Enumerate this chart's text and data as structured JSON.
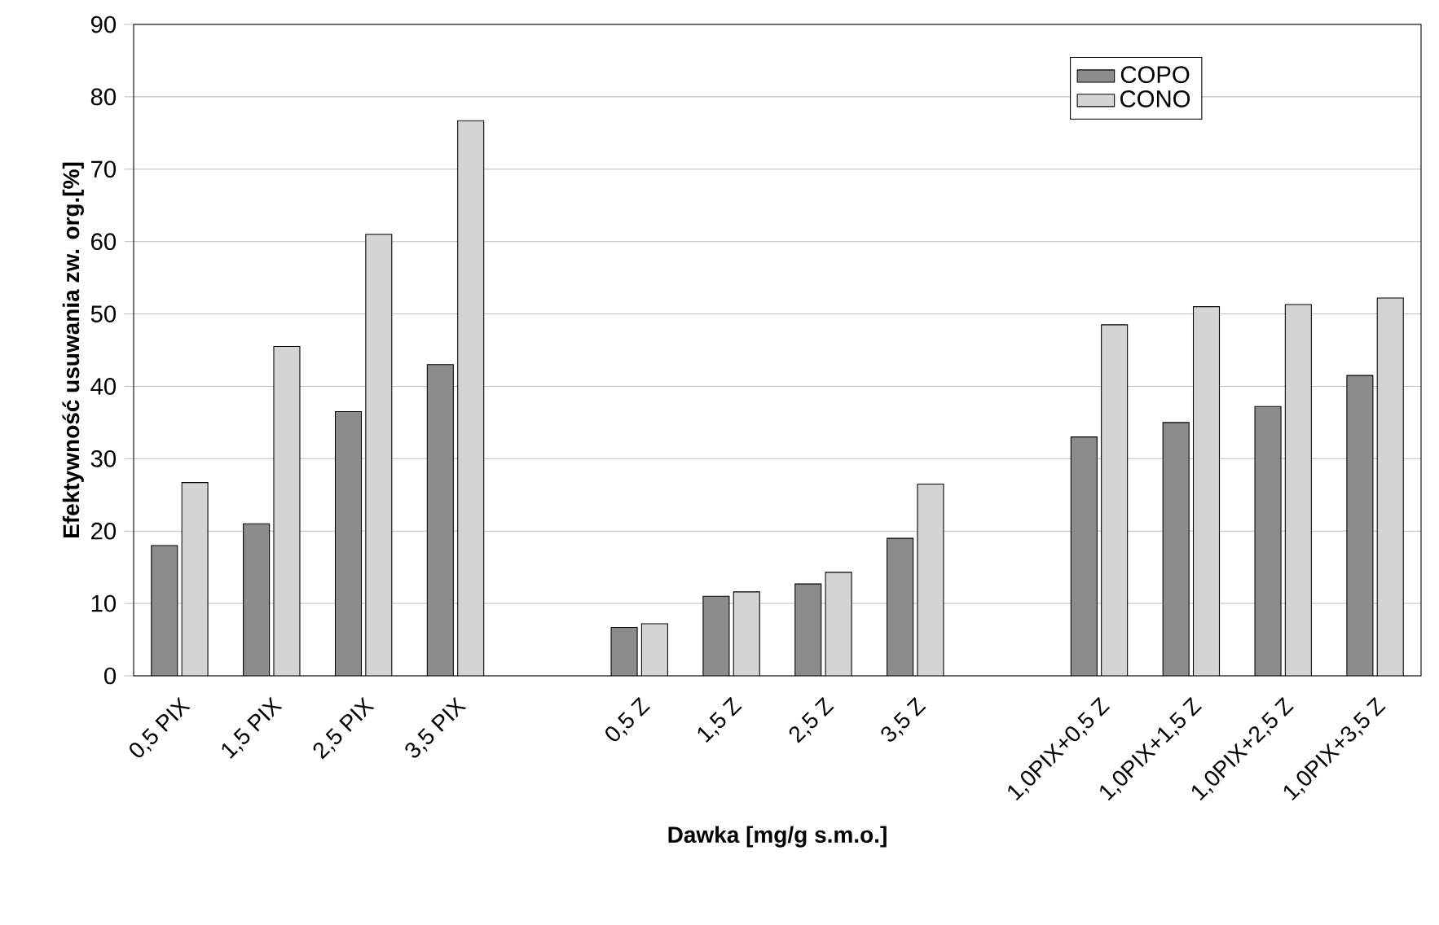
{
  "chart_data": {
    "type": "bar",
    "xlabel": "Dawka [mg/g s.m.o.]",
    "ylabel": "Efektywność usuwania zw. org.[%]",
    "categories": [
      "0,5 PIX",
      "1,5 PIX",
      "2,5 PIX",
      "3,5 PIX",
      null,
      "0,5 Z",
      "1,5 Z",
      "2,5 Z",
      "3,5 Z",
      null,
      "1,0PIX+0,5 Z",
      "1,0PIX+1,5 Z",
      "1,0PIX+2,5 Z",
      "1,0PIX+3,5 Z"
    ],
    "series": [
      {
        "name": "COPO",
        "color": "#8c8c8c",
        "values": [
          18,
          21,
          36.5,
          43,
          null,
          6.7,
          11,
          12.7,
          19,
          null,
          33,
          35,
          37.2,
          41.5
        ]
      },
      {
        "name": "CONO",
        "color": "#d4d4d4",
        "values": [
          26.7,
          45.5,
          61,
          76.7,
          null,
          7.2,
          11.6,
          14.3,
          26.5,
          null,
          48.5,
          51,
          51.3,
          52.2
        ]
      }
    ],
    "ylim": [
      0,
      90
    ],
    "yticks": [
      0,
      10,
      20,
      30,
      40,
      50,
      60,
      70,
      80,
      90
    ],
    "grid": "y",
    "legend": "top right"
  }
}
